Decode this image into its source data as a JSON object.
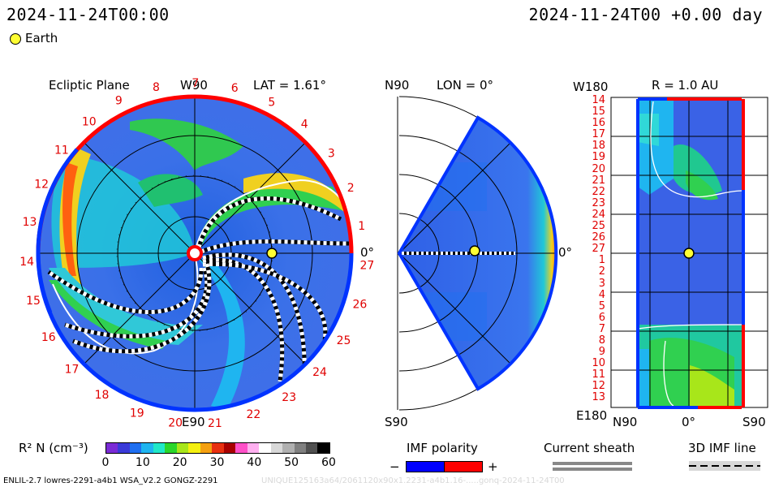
{
  "header": {
    "datetime_left": "2024-11-24T00:00",
    "datetime_right": "2024-11-24T00 +0.00 day",
    "legend_label": "Earth",
    "legend_color": "#ffff33"
  },
  "ecliptic": {
    "title": "Ecliptic Plane",
    "top_label": "W90",
    "bottom_label": "E90",
    "right_label": "0°",
    "lat_label": "LAT = 1.61°",
    "carrington_labels": [
      "1",
      "2",
      "3",
      "4",
      "5",
      "6",
      "7",
      "8",
      "9",
      "10",
      "11",
      "12",
      "13",
      "14",
      "15",
      "16",
      "17",
      "18",
      "19",
      "20",
      "21",
      "22",
      "23",
      "24",
      "25",
      "26",
      "27"
    ]
  },
  "meridional": {
    "top_label": "N90",
    "bottom_label": "S90",
    "lon_label": "LON = 0°",
    "right_label": "0°"
  },
  "radial": {
    "title": "R = 1.0 AU",
    "top_label": "W180",
    "bottom_label": "E180",
    "xlabels": [
      "N90",
      "0°",
      "S90"
    ],
    "ylabels": [
      "14",
      "15",
      "16",
      "17",
      "18",
      "19",
      "20",
      "21",
      "22",
      "23",
      "24",
      "25",
      "26",
      "27",
      "1",
      "2",
      "3",
      "4",
      "5",
      "6",
      "7",
      "8",
      "9",
      "10",
      "11",
      "12",
      "13"
    ]
  },
  "colorbar": {
    "label": "R² N (cm⁻³)",
    "ticks": [
      "0",
      "10",
      "20",
      "30",
      "40",
      "50",
      "60"
    ],
    "colors": [
      "#7a2bd6",
      "#3a3ad8",
      "#1f6ff0",
      "#1fb5f0",
      "#20e8c8",
      "#2ad62a",
      "#a8e61a",
      "#f5f010",
      "#f5a010",
      "#e83010",
      "#a80000",
      "#ff50c8",
      "#ffb0f0",
      "#ffffff",
      "#d8d8d8",
      "#b0b0b0",
      "#808080",
      "#505050",
      "#000000"
    ]
  },
  "imf_polarity": {
    "title": "IMF polarity",
    "minus": "−",
    "plus": "+",
    "neg_color": "#0000ff",
    "pos_color": "#ff0000"
  },
  "current_sheath": {
    "title": "Current sheath"
  },
  "imf_line": {
    "title": "3D IMF line"
  },
  "footer": {
    "left": "ENLIL-2.7 lowres-2291-a4b1 WSA_V2.2 GONGZ-2291",
    "right": "UNIQUE125163a64/2061120x90x1.2231-a4b1.16-.....gonq-2024-11-24T00"
  }
}
